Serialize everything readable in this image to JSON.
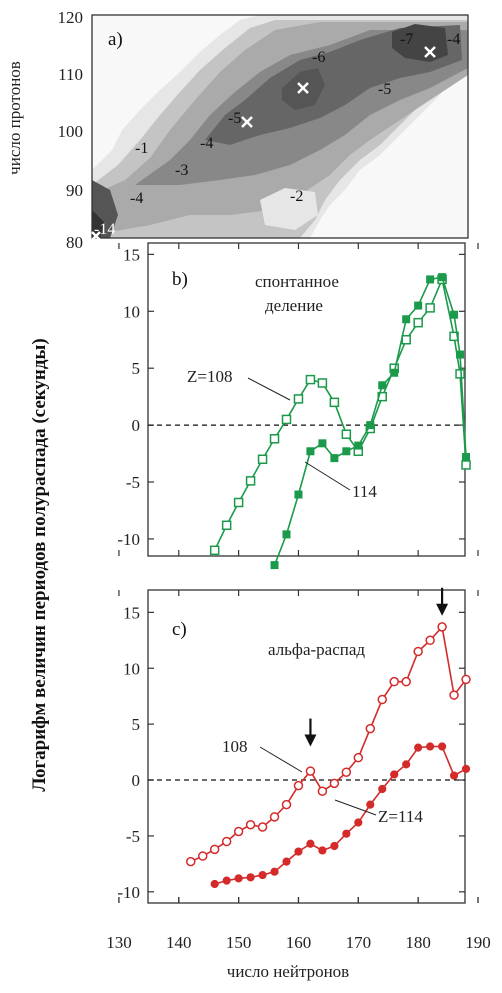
{
  "figure": {
    "ylabel_shared": "Логарифм величин периодов полураспада  (секунды)",
    "xlabel": "число нейтронов",
    "x_ticks": [
      "130",
      "140",
      "150",
      "160",
      "170",
      "180",
      "190"
    ]
  },
  "chart_data": [
    {
      "type": "heatmap",
      "panel": "a)",
      "ylabel": "число протонов",
      "y_ticks": [
        "80",
        "90",
        "100",
        "110",
        "120"
      ],
      "ylim": [
        82,
        120
      ],
      "contour_labels": [
        "-7",
        "-4",
        "-6",
        "-5",
        "-5",
        "-4",
        "-1",
        "-3",
        "-4",
        "-2",
        "-14"
      ],
      "markers_x_count": 5,
      "colors": {
        "darkest": "#444",
        "dark": "#666",
        "mid": "#888",
        "light": "#aaa",
        "lighter": "#c4c4c4",
        "lightest": "#e6e6e6"
      }
    },
    {
      "type": "line",
      "panel": "b)",
      "title": "спонтанное деление",
      "ylim": [
        -11.5,
        16
      ],
      "xlim": [
        126,
        190
      ],
      "y_ticks": [
        "15",
        "10",
        "5",
        "0",
        "-5",
        "-10"
      ],
      "color": "#1a9a4a",
      "series": [
        {
          "name": "Z=108",
          "marker": "open-square",
          "points": [
            [
              146,
              -11
            ],
            [
              148,
              -8.8
            ],
            [
              150,
              -6.8
            ],
            [
              152,
              -4.9
            ],
            [
              154,
              -3
            ],
            [
              156,
              -1.2
            ],
            [
              158,
              0.5
            ],
            [
              160,
              2.3
            ],
            [
              162,
              4
            ],
            [
              164,
              3.7
            ],
            [
              166,
              2
            ],
            [
              168,
              -0.8
            ],
            [
              170,
              -2.3
            ],
            [
              172,
              -0.3
            ],
            [
              174,
              2.5
            ],
            [
              176,
              5
            ],
            [
              178,
              7.5
            ],
            [
              180,
              9
            ],
            [
              182,
              10.3
            ],
            [
              184,
              12.8
            ],
            [
              186,
              7.8
            ],
            [
              187,
              4.5
            ],
            [
              188,
              -3.5
            ]
          ]
        },
        {
          "name": "114",
          "marker": "filled-square",
          "points": [
            [
              156,
              -12.3
            ],
            [
              158,
              -9.6
            ],
            [
              160,
              -6.1
            ],
            [
              162,
              -2.3
            ],
            [
              164,
              -1.6
            ],
            [
              166,
              -2.9
            ],
            [
              168,
              -2.3
            ],
            [
              170,
              -1.8
            ],
            [
              172,
              0
            ],
            [
              174,
              3.5
            ],
            [
              176,
              4.6
            ],
            [
              178,
              9.3
            ],
            [
              180,
              10.5
            ],
            [
              182,
              12.8
            ],
            [
              184,
              13
            ],
            [
              186,
              9.7
            ],
            [
              187,
              6.2
            ],
            [
              188,
              -2.8
            ]
          ]
        }
      ]
    },
    {
      "type": "line",
      "panel": "c)",
      "title": "альфа-распад",
      "ylim": [
        -11,
        17
      ],
      "xlim": [
        126,
        190
      ],
      "y_ticks": [
        "15",
        "10",
        "5",
        "0",
        "-5",
        "-10"
      ],
      "color": "#d42a2a",
      "series": [
        {
          "name": "108",
          "marker": "open-circle",
          "points": [
            [
              142,
              -7.3
            ],
            [
              144,
              -6.8
            ],
            [
              146,
              -6.2
            ],
            [
              148,
              -5.5
            ],
            [
              150,
              -4.6
            ],
            [
              152,
              -4
            ],
            [
              154,
              -4.2
            ],
            [
              156,
              -3.3
            ],
            [
              158,
              -2.2
            ],
            [
              160,
              -0.5
            ],
            [
              162,
              0.8
            ],
            [
              164,
              -1
            ],
            [
              166,
              -0.3
            ],
            [
              168,
              0.7
            ],
            [
              170,
              2
            ],
            [
              172,
              4.6
            ],
            [
              174,
              7.2
            ],
            [
              176,
              8.8
            ],
            [
              178,
              8.8
            ],
            [
              180,
              11.5
            ],
            [
              182,
              12.5
            ],
            [
              184,
              13.7
            ],
            [
              186,
              7.6
            ],
            [
              188,
              9
            ]
          ]
        },
        {
          "name": "Z=114",
          "marker": "filled-circle",
          "points": [
            [
              146,
              -9.3
            ],
            [
              148,
              -9
            ],
            [
              150,
              -8.8
            ],
            [
              152,
              -8.7
            ],
            [
              154,
              -8.5
            ],
            [
              156,
              -8.2
            ],
            [
              158,
              -7.3
            ],
            [
              160,
              -6.4
            ],
            [
              162,
              -5.7
            ],
            [
              164,
              -6.3
            ],
            [
              166,
              -5.9
            ],
            [
              168,
              -4.8
            ],
            [
              170,
              -3.8
            ],
            [
              172,
              -2.2
            ],
            [
              174,
              -0.8
            ],
            [
              176,
              0.5
            ],
            [
              178,
              1.4
            ],
            [
              180,
              2.9
            ],
            [
              182,
              3
            ],
            [
              184,
              3
            ],
            [
              186,
              0.4
            ],
            [
              188,
              1
            ]
          ]
        }
      ],
      "arrows_at_x": [
        162,
        184
      ]
    }
  ]
}
